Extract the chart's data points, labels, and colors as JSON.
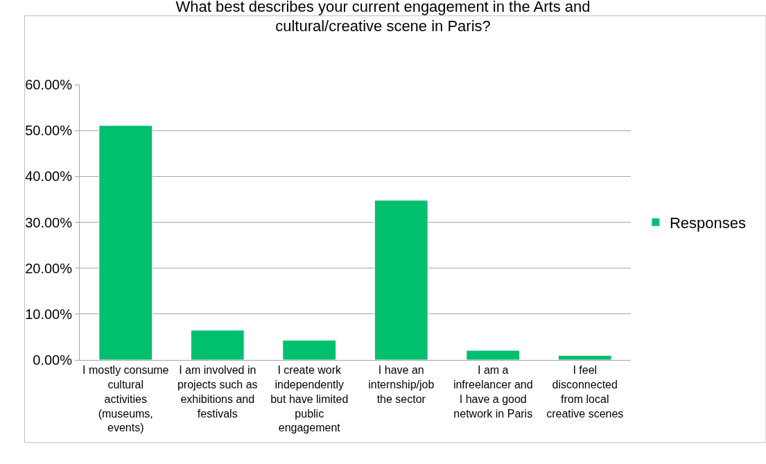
{
  "chart_data": {
    "type": "bar",
    "title": "What best describes your current engagement in the Arts and cultural/creative scene in Paris?",
    "categories": [
      "I mostly consume cultural activities (museums, events)",
      "I am involved in projects such as exhibitions and festivals",
      "I create work independently but have limited public engagement",
      "I have an internship/job the sector",
      "I am a infreelancer and I have a good network in Paris",
      "I feel disconnected from local creative scenes"
    ],
    "series": [
      {
        "name": "Responses",
        "color": "#00bf6f",
        "values": [
          51.1,
          6.5,
          4.3,
          34.8,
          2.1,
          1.0
        ]
      }
    ],
    "ylim": [
      0,
      60
    ],
    "yticks": [
      {
        "value": 0,
        "label": "0.00%"
      },
      {
        "value": 10,
        "label": "10.00%"
      },
      {
        "value": 20,
        "label": "20.00%"
      },
      {
        "value": 30,
        "label": "30.00%"
      },
      {
        "value": 40,
        "label": "40.00%"
      },
      {
        "value": 50,
        "label": "50.00%"
      },
      {
        "value": 60,
        "label": "60.00%"
      }
    ],
    "grid": "y",
    "legend": "right"
  }
}
